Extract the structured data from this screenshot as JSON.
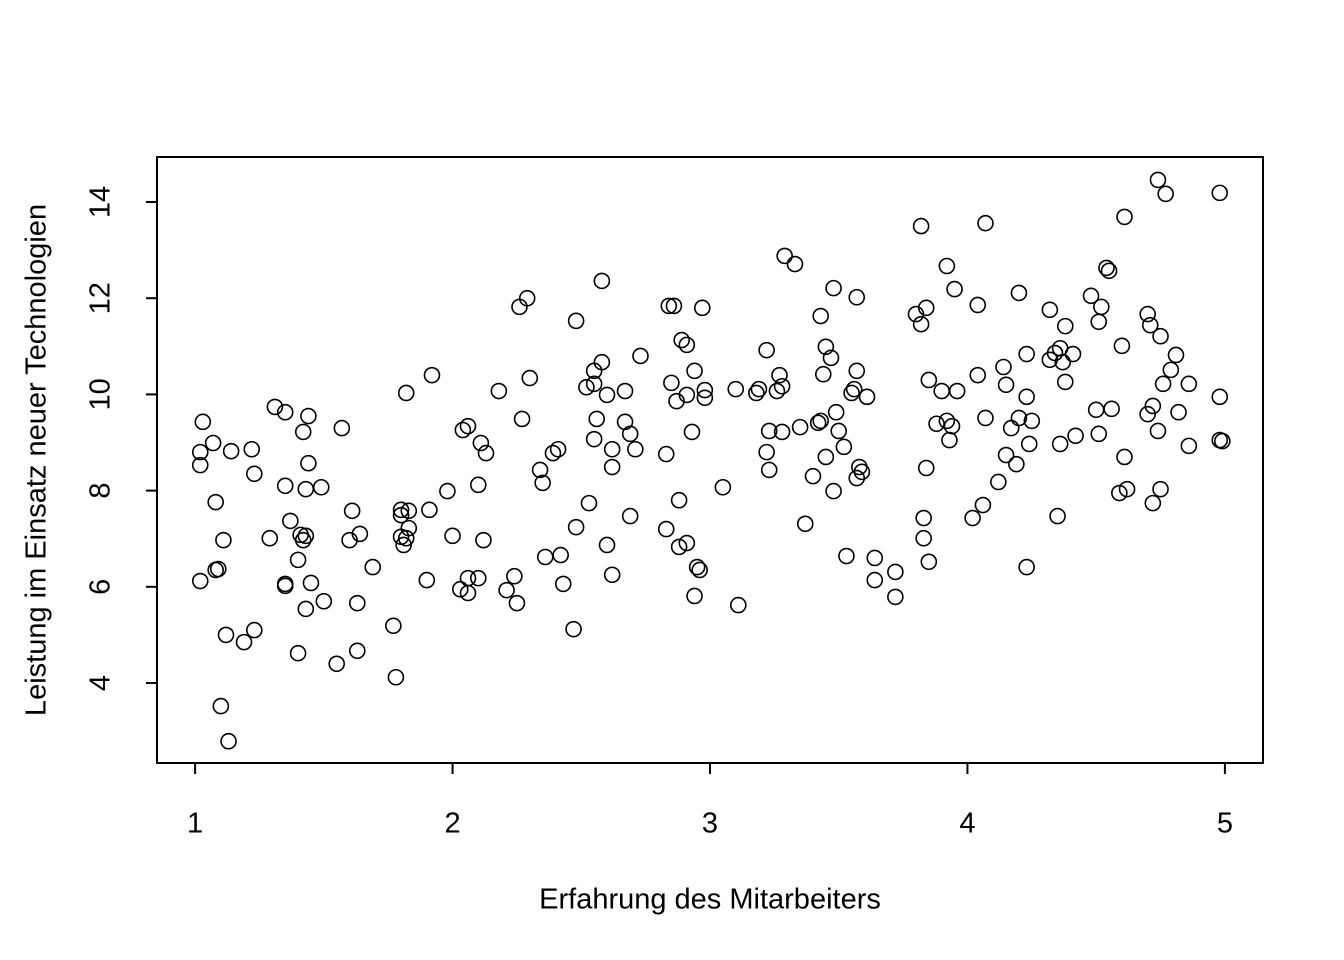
{
  "chart_data": {
    "type": "scatter",
    "x_label": "Erfahrung des Mitarbeiters",
    "y_label": "Leistung im Einsatz neuer Technologien",
    "color": "#000000",
    "xlim": [
      0.852,
      5.148
    ],
    "ylim": [
      2.337,
      14.936
    ],
    "xticks": [
      1,
      2,
      3,
      4,
      5
    ],
    "yticks": [
      4,
      6,
      8,
      10,
      12,
      14
    ],
    "x": [
      1.02,
      1.02,
      1.03,
      1.02,
      1.07,
      1.08,
      1.08,
      1.09,
      1.11,
      1.12,
      1.1,
      1.13,
      1.14,
      1.19,
      1.22,
      1.23,
      1.23,
      1.29,
      1.31,
      1.35,
      1.35,
      1.35,
      1.35,
      1.37,
      1.4,
      1.4,
      1.41,
      1.42,
      1.43,
      1.42,
      1.43,
      1.43,
      1.44,
      1.44,
      1.45,
      1.49,
      1.5,
      1.55,
      1.57,
      1.6,
      1.61,
      1.63,
      1.63,
      1.64,
      1.69,
      1.77,
      1.78,
      1.8,
      1.8,
      1.8,
      1.81,
      1.82,
      1.82,
      1.83,
      1.83,
      1.9,
      1.91,
      1.92,
      1.98,
      2.0,
      2.03,
      2.04,
      2.06,
      2.06,
      2.06,
      2.1,
      2.1,
      2.11,
      2.13,
      2.12,
      2.18,
      2.21,
      2.24,
      2.25,
      2.26,
      2.27,
      2.29,
      2.3,
      2.34,
      2.35,
      2.36,
      2.39,
      2.41,
      2.42,
      2.43,
      2.47,
      2.48,
      2.48,
      2.52,
      2.53,
      2.55,
      2.55,
      2.55,
      2.56,
      2.58,
      2.58,
      2.6,
      2.6,
      2.62,
      2.62,
      2.62,
      2.67,
      2.67,
      2.69,
      2.69,
      2.71,
      2.73,
      2.83,
      2.83,
      2.84,
      2.86,
      2.85,
      2.87,
      2.88,
      2.88,
      2.89,
      2.91,
      2.91,
      2.91,
      2.93,
      2.94,
      2.94,
      2.95,
      2.96,
      2.97,
      2.98,
      2.98,
      3.05,
      3.1,
      3.11,
      3.18,
      3.19,
      3.22,
      3.23,
      3.22,
      3.23,
      3.26,
      3.27,
      3.28,
      3.28,
      3.29,
      3.33,
      3.35,
      3.37,
      3.4,
      3.42,
      3.43,
      3.43,
      3.44,
      3.45,
      3.45,
      3.47,
      3.48,
      3.48,
      3.49,
      3.5,
      3.52,
      3.53,
      3.55,
      3.56,
      3.57,
      3.57,
      3.57,
      3.58,
      3.59,
      3.61,
      3.64,
      3.64,
      3.72,
      3.72,
      3.8,
      3.82,
      3.82,
      3.83,
      3.83,
      3.84,
      3.84,
      3.85,
      3.85,
      3.88,
      3.9,
      3.92,
      3.92,
      3.93,
      3.94,
      3.95,
      3.96,
      4.02,
      4.04,
      4.04,
      4.06,
      4.07,
      4.07,
      4.12,
      4.14,
      4.15,
      4.15,
      4.17,
      4.19,
      4.2,
      4.2,
      4.23,
      4.23,
      4.23,
      4.24,
      4.25,
      4.32,
      4.32,
      4.34,
      4.35,
      4.36,
      4.36,
      4.37,
      4.38,
      4.38,
      4.41,
      4.42,
      4.48,
      4.5,
      4.51,
      4.51,
      4.52,
      4.54,
      4.55,
      4.56,
      4.59,
      4.6,
      4.61,
      4.61,
      4.62,
      4.7,
      4.7,
      4.71,
      4.72,
      4.72,
      4.74,
      4.74,
      4.75,
      4.75,
      4.76,
      4.77,
      4.79,
      4.81,
      4.82,
      4.86,
      4.86,
      4.98,
      4.98,
      4.98,
      4.99
    ],
    "y": [
      8.53,
      8.8,
      9.43,
      6.12,
      8.99,
      7.76,
      6.35,
      6.37,
      6.97,
      5.0,
      3.52,
      2.79,
      8.82,
      4.85,
      8.86,
      8.35,
      5.1,
      7.01,
      9.74,
      9.63,
      8.1,
      6.06,
      6.02,
      7.37,
      6.56,
      4.62,
      7.08,
      6.97,
      5.54,
      9.22,
      8.03,
      7.06,
      9.55,
      8.57,
      6.08,
      8.07,
      5.7,
      4.4,
      9.3,
      6.97,
      7.58,
      5.66,
      4.67,
      7.1,
      6.41,
      5.19,
      4.12,
      7.6,
      7.49,
      7.04,
      6.87,
      7.01,
      10.03,
      7.58,
      7.22,
      6.14,
      7.6,
      10.4,
      7.99,
      7.06,
      5.95,
      9.26,
      9.34,
      5.87,
      6.18,
      6.18,
      8.12,
      8.99,
      8.78,
      6.97,
      10.07,
      5.93,
      6.22,
      5.66,
      11.82,
      9.49,
      12.0,
      10.34,
      8.43,
      8.16,
      6.62,
      8.78,
      8.86,
      6.66,
      6.06,
      5.12,
      7.24,
      11.53,
      10.15,
      7.74,
      10.22,
      10.49,
      9.07,
      9.49,
      10.67,
      12.36,
      9.99,
      6.87,
      8.86,
      8.49,
      6.25,
      10.07,
      9.43,
      9.18,
      7.47,
      8.86,
      10.8,
      7.2,
      8.76,
      11.84,
      11.84,
      10.24,
      9.86,
      6.83,
      7.8,
      11.13,
      11.03,
      6.91,
      9.99,
      9.22,
      10.49,
      5.81,
      6.41,
      6.35,
      11.8,
      9.93,
      10.09,
      8.07,
      10.11,
      5.62,
      10.03,
      10.11,
      10.92,
      9.24,
      8.8,
      8.43,
      10.07,
      10.4,
      10.17,
      9.22,
      12.88,
      12.71,
      9.32,
      7.31,
      8.3,
      9.41,
      9.45,
      11.63,
      10.42,
      10.99,
      8.7,
      10.76,
      12.21,
      7.99,
      9.63,
      9.24,
      8.91,
      6.64,
      10.03,
      10.11,
      12.02,
      10.49,
      8.26,
      8.49,
      8.39,
      9.95,
      6.6,
      6.14,
      6.31,
      5.79,
      11.67,
      13.5,
      11.46,
      7.43,
      7.01,
      11.8,
      8.47,
      10.3,
      6.52,
      9.39,
      10.07,
      12.67,
      9.45,
      9.05,
      9.34,
      12.19,
      10.07,
      7.43,
      11.86,
      10.4,
      7.7,
      13.56,
      9.51,
      8.18,
      10.57,
      10.2,
      8.74,
      9.3,
      8.55,
      12.11,
      9.51,
      6.41,
      10.84,
      9.95,
      8.97,
      9.45,
      11.76,
      10.72,
      10.86,
      7.47,
      8.97,
      10.96,
      10.67,
      10.26,
      11.42,
      10.84,
      9.14,
      12.05,
      9.68,
      11.51,
      9.18,
      11.82,
      12.63,
      12.57,
      9.7,
      7.95,
      11.01,
      13.69,
      8.7,
      8.03,
      9.59,
      11.67,
      11.44,
      9.76,
      7.74,
      14.46,
      9.24,
      8.03,
      11.21,
      10.22,
      14.17,
      10.51,
      10.82,
      9.63,
      10.22,
      8.93,
      9.95,
      14.19,
      9.05,
      9.03
    ]
  }
}
